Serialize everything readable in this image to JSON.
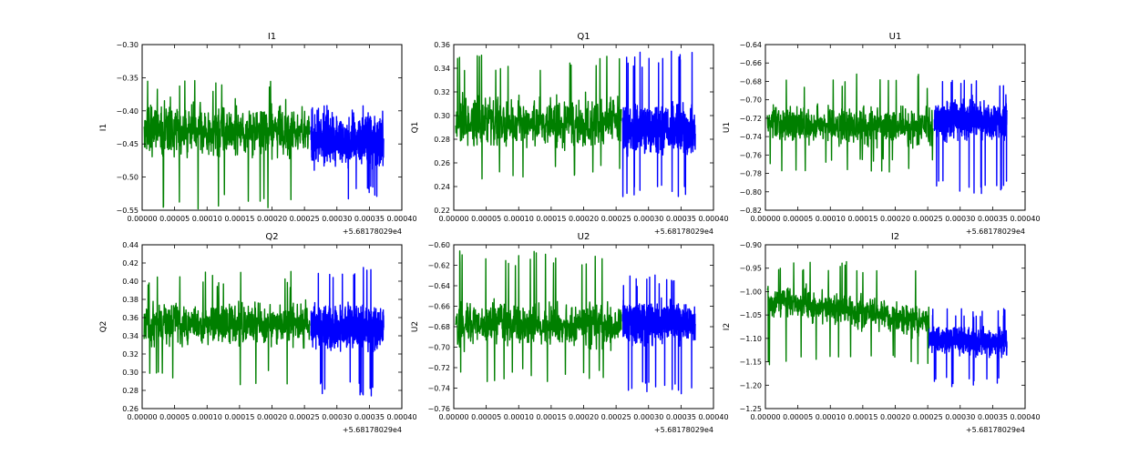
{
  "chart_data": [
    {
      "type": "line",
      "title": "I1",
      "ylabel": "I1",
      "xlim": [
        0.0,
        0.0004
      ],
      "ylim": [
        -0.55,
        -0.3
      ],
      "xticks": [
        "0.00000",
        "0.00005",
        "0.00010",
        "0.00015",
        "0.00020",
        "0.00025",
        "0.00030",
        "0.00035",
        "0.00040"
      ],
      "yticks": [
        "−0.55",
        "−0.50",
        "−0.45",
        "−0.40",
        "−0.35",
        "−0.30"
      ],
      "x_offset": "+5.68178029e4",
      "series": [
        {
          "x_range": [
            0.00026,
            0.000372
          ],
          "mean": -0.445,
          "spread": 0.028,
          "min": -0.54,
          "max": -0.39,
          "trend": 0.0,
          "color": "#0000ff"
        },
        {
          "x_range": [
            3e-06,
            0.000258
          ],
          "mean": -0.43,
          "spread": 0.03,
          "min": -0.55,
          "max": -0.345,
          "trend": 0.0,
          "color": "#007f00"
        }
      ]
    },
    {
      "type": "line",
      "title": "Q1",
      "ylabel": "Q1",
      "xlim": [
        0.0,
        0.0004
      ],
      "ylim": [
        0.22,
        0.36
      ],
      "xticks": [
        "0.00000",
        "0.00005",
        "0.00010",
        "0.00015",
        "0.00020",
        "0.00025",
        "0.00030",
        "0.00035",
        "0.00040"
      ],
      "yticks": [
        "0.22",
        "0.24",
        "0.26",
        "0.28",
        "0.30",
        "0.32",
        "0.34",
        "0.36"
      ],
      "x_offset": "+5.68178029e4",
      "series": [
        {
          "x_range": [
            0.00026,
            0.000372
          ],
          "mean": 0.288,
          "spread": 0.015,
          "min": 0.228,
          "max": 0.355,
          "trend": 0.0,
          "color": "#0000ff"
        },
        {
          "x_range": [
            3e-06,
            0.000258
          ],
          "mean": 0.294,
          "spread": 0.016,
          "min": 0.245,
          "max": 0.352,
          "trend": 0.0,
          "color": "#007f00"
        }
      ]
    },
    {
      "type": "line",
      "title": "U1",
      "ylabel": "U1",
      "xlim": [
        0.0,
        0.0004
      ],
      "ylim": [
        -0.82,
        -0.64
      ],
      "xticks": [
        "0.00000",
        "0.00005",
        "0.00010",
        "0.00015",
        "0.00020",
        "0.00025",
        "0.00030",
        "0.00035",
        "0.00040"
      ],
      "yticks": [
        "−0.82",
        "−0.80",
        "−0.78",
        "−0.76",
        "−0.74",
        "−0.72",
        "−0.70",
        "−0.68",
        "−0.66",
        "−0.64"
      ],
      "x_offset": "+5.68178029e4",
      "series": [
        {
          "x_range": [
            0.00026,
            0.000372
          ],
          "mean": -0.722,
          "spread": 0.016,
          "min": -0.804,
          "max": -0.675,
          "trend": 0.0,
          "color": "#0000ff"
        },
        {
          "x_range": [
            3e-06,
            0.000258
          ],
          "mean": -0.728,
          "spread": 0.016,
          "min": -0.78,
          "max": -0.672,
          "trend": 0.0,
          "color": "#007f00"
        }
      ]
    },
    {
      "type": "line",
      "title": "Q2",
      "ylabel": "Q2",
      "xlim": [
        0.0,
        0.0004
      ],
      "ylim": [
        0.26,
        0.44
      ],
      "xticks": [
        "0.00000",
        "0.00005",
        "0.00010",
        "0.00015",
        "0.00020",
        "0.00025",
        "0.00030",
        "0.00035",
        "0.00040"
      ],
      "yticks": [
        "0.26",
        "0.28",
        "0.30",
        "0.32",
        "0.34",
        "0.36",
        "0.38",
        "0.40",
        "0.42",
        "0.44"
      ],
      "x_offset": "+5.68178029e4",
      "series": [
        {
          "x_range": [
            0.00026,
            0.000372
          ],
          "mean": 0.35,
          "spread": 0.017,
          "min": 0.273,
          "max": 0.421,
          "trend": 0.0,
          "color": "#0000ff"
        },
        {
          "x_range": [
            3e-06,
            0.000258
          ],
          "mean": 0.352,
          "spread": 0.018,
          "min": 0.285,
          "max": 0.411,
          "trend": 0.0,
          "color": "#007f00"
        }
      ]
    },
    {
      "type": "line",
      "title": "U2",
      "ylabel": "U2",
      "xlim": [
        0.0,
        0.0004
      ],
      "ylim": [
        -0.76,
        -0.6
      ],
      "xticks": [
        "0.00000",
        "0.00005",
        "0.00010",
        "0.00015",
        "0.00020",
        "0.00025",
        "0.00030",
        "0.00035",
        "0.00040"
      ],
      "yticks": [
        "−0.76",
        "−0.74",
        "−0.72",
        "−0.70",
        "−0.68",
        "−0.66",
        "−0.64",
        "−0.62",
        "−0.60"
      ],
      "x_offset": "+5.68178029e4",
      "series": [
        {
          "x_range": [
            0.00026,
            0.000372
          ],
          "mean": -0.676,
          "spread": 0.015,
          "min": -0.748,
          "max": -0.626,
          "trend": 0.0,
          "color": "#0000ff"
        },
        {
          "x_range": [
            3e-06,
            0.000258
          ],
          "mean": -0.678,
          "spread": 0.016,
          "min": -0.735,
          "max": -0.605,
          "trend": 0.0,
          "color": "#007f00"
        }
      ]
    },
    {
      "type": "line",
      "title": "I2",
      "ylabel": "I2",
      "xlim": [
        0.0,
        0.0004
      ],
      "ylim": [
        -1.25,
        -0.9
      ],
      "xticks": [
        "0.00000",
        "0.00005",
        "0.00010",
        "0.00015",
        "0.00020",
        "0.00025",
        "0.00030",
        "0.00035",
        "0.00040"
      ],
      "yticks": [
        "−1.25",
        "−1.20",
        "−1.15",
        "−1.10",
        "−1.05",
        "−1.00",
        "−0.95",
        "−0.90"
      ],
      "x_offset": "+5.68178029e4",
      "series": [
        {
          "x_range": [
            0.00025,
            0.000372
          ],
          "mean": -1.105,
          "spread": 0.022,
          "min": -1.205,
          "max": -1.035,
          "trend": -0.01,
          "color": "#0000ff"
        },
        {
          "x_range": [
            3e-06,
            0.000252
          ],
          "mean": -1.04,
          "spread": 0.025,
          "min": -1.16,
          "max": -0.935,
          "trend": -0.05,
          "color": "#007f00"
        }
      ]
    }
  ]
}
